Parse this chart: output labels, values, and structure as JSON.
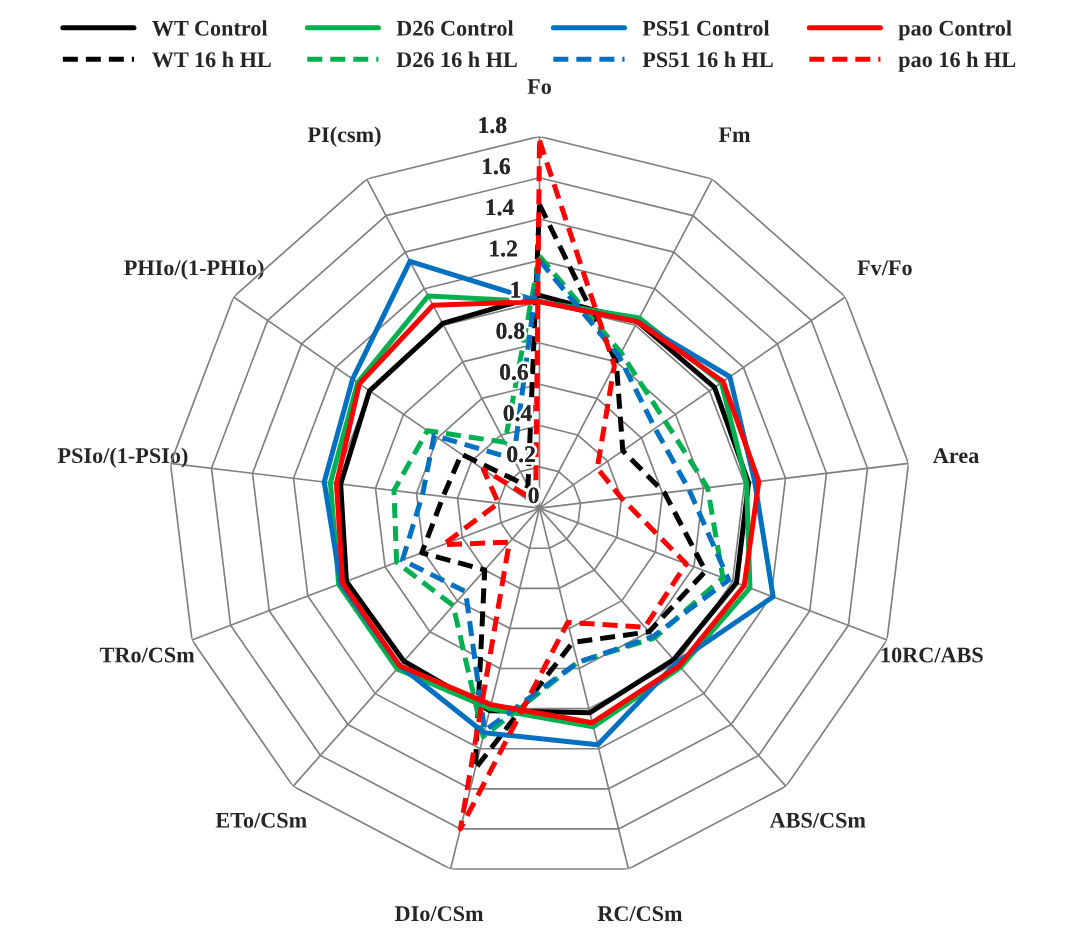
{
  "chart_data": {
    "type": "radar",
    "categories": [
      "Fo",
      "Fm",
      "Fv/Fo",
      "Area",
      "10RC/ABS",
      "ABS/CSm",
      "RC/CSm",
      "DIo/CSm",
      "ETo/CSm",
      "TRo/CSm",
      "PSIo/(1-PSIo)",
      "PHIo/(1-PHIo)",
      "PI(csm)"
    ],
    "ylim": [
      0,
      1.8
    ],
    "yticks": [
      0,
      0.2,
      0.4,
      0.6,
      0.8,
      1,
      1.2,
      1.4,
      1.6,
      1.8
    ],
    "grid": true,
    "legend": "top",
    "series": [
      {
        "name": "WT Control",
        "color": "#000000",
        "line_style": "solid",
        "values": [
          1.03,
          1.02,
          1.03,
          1.02,
          1.02,
          0.98,
          1.02,
          1.01,
          0.99,
          1.0,
          0.97,
          1.0,
          1.01
        ]
      },
      {
        "name": "WT 16 h HL",
        "color": "#000000",
        "line_style": "dashed",
        "values": [
          1.47,
          0.8,
          0.49,
          0.61,
          0.86,
          0.8,
          0.67,
          1.3,
          0.4,
          0.61,
          0.47,
          0.46,
          0.12
        ]
      },
      {
        "name": "D26 Control",
        "color": "#00b050",
        "line_style": "solid",
        "values": [
          1.0,
          1.04,
          1.07,
          1.01,
          1.09,
          1.03,
          1.09,
          1.0,
          1.04,
          1.04,
          1.02,
          1.07,
          1.16
        ]
      },
      {
        "name": "D26 16 h HL",
        "color": "#00b050",
        "line_style": "dashed",
        "values": [
          1.22,
          0.85,
          0.74,
          0.82,
          0.95,
          0.84,
          0.77,
          1.14,
          0.63,
          0.74,
          0.71,
          0.66,
          0.36
        ]
      },
      {
        "name": "PS51 Control",
        "color": "#0070c0",
        "line_style": "solid",
        "values": [
          1.0,
          1.02,
          1.12,
          1.05,
          1.21,
          1.0,
          1.18,
          1.12,
          1.02,
          1.03,
          1.05,
          1.1,
          1.35
        ]
      },
      {
        "name": "PS51 16 h HL",
        "color": "#0070c0",
        "line_style": "dashed",
        "values": [
          1.2,
          0.83,
          0.68,
          0.73,
          0.98,
          0.83,
          0.77,
          1.11,
          0.54,
          0.71,
          0.57,
          0.62,
          0.27
        ]
      },
      {
        "name": "pao Control",
        "color": "#ff0000",
        "line_style": "solid",
        "values": [
          1.0,
          1.02,
          1.08,
          1.07,
          1.06,
          1.02,
          1.07,
          0.98,
          1.02,
          1.02,
          0.99,
          1.06,
          1.11
        ]
      },
      {
        "name": "pao 16 h HL",
        "color": "#ff0000",
        "line_style": "dashed",
        "values": [
          1.78,
          0.78,
          0.34,
          0.4,
          0.76,
          0.77,
          0.57,
          1.6,
          0.22,
          0.5,
          0.2,
          0.33,
          0.04
        ]
      }
    ]
  }
}
